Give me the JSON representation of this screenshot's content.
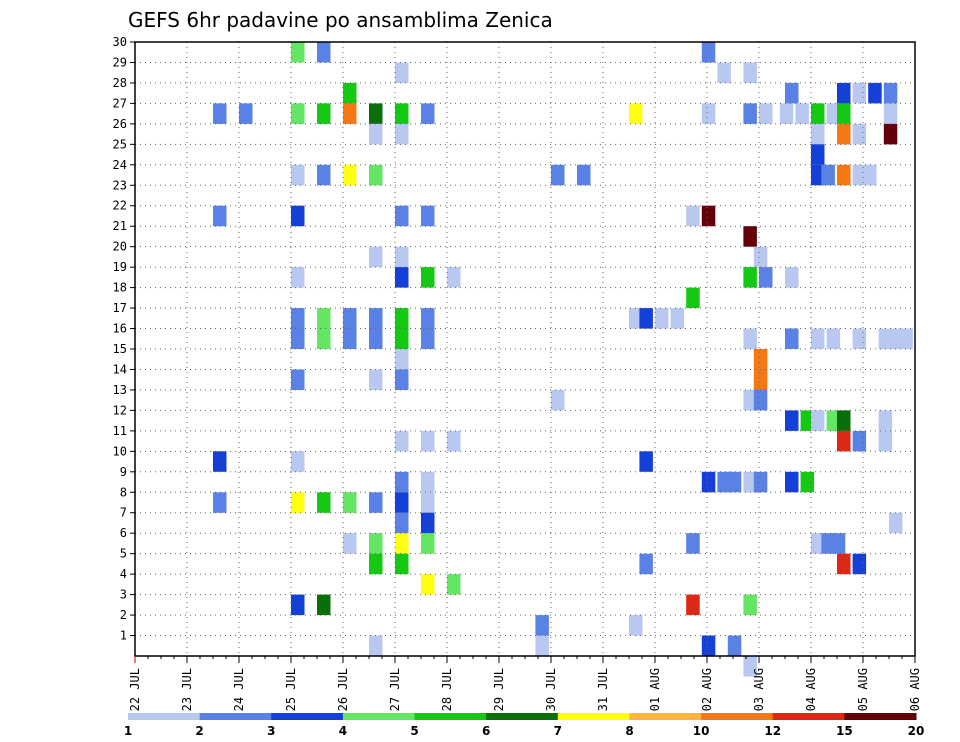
{
  "chart_data": {
    "type": "heatmap",
    "title": "GEFS 6hr padavine po ansamblima Zenica",
    "x_tick_labels": [
      "22 JUL",
      "23 JUL",
      "24 JUL",
      "25 JUL",
      "26 JUL",
      "27 JUL",
      "28 JUL",
      "29 JUL",
      "30 JUL",
      "31 JUL",
      "01 AUG",
      "02 AUG",
      "03 AUG",
      "04 AUG",
      "05 AUG",
      "06 AUG"
    ],
    "y_tick_labels": [
      "1",
      "2",
      "3",
      "4",
      "5",
      "6",
      "7",
      "8",
      "9",
      "10",
      "11",
      "12",
      "13",
      "14",
      "15",
      "16",
      "17",
      "18",
      "19",
      "20",
      "21",
      "22",
      "23",
      "24",
      "25",
      "26",
      "27",
      "28",
      "29",
      "30"
    ],
    "ylim": [
      0,
      30
    ],
    "x_steps_per_day": 4,
    "grid": true,
    "colorbar": {
      "labels": [
        "1",
        "2",
        "3",
        "4",
        "5",
        "6",
        "7",
        "8",
        "10",
        "12",
        "15",
        "20"
      ],
      "colors": [
        "#b8c8f0",
        "#5a82e6",
        "#1440d8",
        "#64e664",
        "#14c814",
        "#0a6e0a",
        "#ffff14",
        "#ffb43c",
        "#f57814",
        "#dc2814",
        "#64000a"
      ]
    },
    "cells": [
      {
        "m": 30,
        "x": [
          [
            4,
            1
          ],
          [
            4.5,
            4
          ],
          [
            7,
            4
          ]
        ]
      },
      {
        "m": 29,
        "x": [
          [
            3,
            4
          ],
          [
            3.5,
            2
          ]
        ]
      },
      {
        "m": 28,
        "x": [
          [
            5,
            1
          ]
        ]
      },
      {
        "m": 27,
        "x": [
          [
            4,
            5
          ]
        ]
      },
      {
        "m": 26,
        "x": [
          [
            1.5,
            2
          ],
          [
            2,
            2
          ],
          [
            3,
            4
          ],
          [
            3.5,
            5
          ],
          [
            4,
            9
          ],
          [
            4.5,
            6
          ],
          [
            5,
            5
          ],
          [
            5.5,
            2
          ]
        ]
      },
      {
        "m": 25,
        "x": [
          [
            4.5,
            1
          ],
          [
            5,
            1
          ]
        ]
      },
      {
        "m": 23,
        "x": [
          [
            3,
            1
          ],
          [
            3.5,
            2
          ],
          [
            4,
            7
          ],
          [
            4.5,
            4
          ],
          [
            8,
            2
          ],
          [
            8.5,
            2
          ]
        ]
      },
      {
        "m": 21,
        "x": [
          [
            1.5,
            2
          ],
          [
            3,
            3
          ],
          [
            5,
            2
          ],
          [
            5.5,
            2
          ]
        ]
      },
      {
        "m": 19,
        "x": [
          [
            4.5,
            1
          ],
          [
            5,
            1
          ]
        ]
      },
      {
        "m": 18,
        "x": [
          [
            3,
            1
          ],
          [
            5,
            3
          ],
          [
            5.5,
            5
          ],
          [
            6,
            1
          ]
        ]
      },
      {
        "m": 16,
        "x": [
          [
            3,
            2
          ],
          [
            3.5,
            4
          ],
          [
            4,
            2
          ],
          [
            4.5,
            2
          ],
          [
            5,
            5
          ],
          [
            5.5,
            2
          ]
        ]
      },
      {
        "m": 15,
        "x": [
          [
            3,
            2
          ],
          [
            3.5,
            4
          ],
          [
            4,
            2
          ],
          [
            4.5,
            2
          ],
          [
            5,
            5
          ],
          [
            5.5,
            2
          ]
        ]
      },
      {
        "m": 14,
        "x": [
          [
            5,
            1
          ]
        ]
      },
      {
        "m": 13,
        "x": [
          [
            3,
            2
          ],
          [
            4.5,
            1
          ],
          [
            5,
            2
          ]
        ]
      },
      {
        "m": 12,
        "x": [
          [
            8,
            1
          ]
        ]
      },
      {
        "m": 10,
        "x": [
          [
            5,
            1
          ],
          [
            5.5,
            1
          ],
          [
            6,
            1
          ]
        ]
      },
      {
        "m": 9,
        "x": [
          [
            1.5,
            3
          ],
          [
            3,
            1
          ]
        ]
      },
      {
        "m": 8,
        "x": [
          [
            5,
            2
          ],
          [
            5.5,
            1
          ]
        ]
      },
      {
        "m": 7,
        "x": [
          [
            1.5,
            2
          ],
          [
            3,
            7
          ],
          [
            3.5,
            5
          ],
          [
            4,
            4
          ],
          [
            4.5,
            2
          ],
          [
            5,
            3
          ],
          [
            5.5,
            1
          ]
        ]
      },
      {
        "m": 6,
        "x": [
          [
            5,
            2
          ],
          [
            5.5,
            3
          ]
        ]
      },
      {
        "m": 5,
        "x": [
          [
            4,
            1
          ],
          [
            4.5,
            4
          ],
          [
            5,
            7
          ],
          [
            5.5,
            4
          ]
        ]
      },
      {
        "m": 4,
        "x": [
          [
            4.5,
            5
          ],
          [
            5,
            5
          ]
        ]
      },
      {
        "m": 3,
        "x": [
          [
            5.5,
            7
          ],
          [
            6,
            4
          ]
        ]
      },
      {
        "m": 2,
        "x": [
          [
            3,
            3
          ],
          [
            3.5,
            6
          ]
        ]
      },
      {
        "m": 0,
        "x": [
          [
            4.5,
            1
          ]
        ]
      },
      {
        "m": 30,
        "x": [
          [
            9.7,
            1
          ],
          [
            10,
            1
          ]
        ]
      },
      {
        "m": 29,
        "x": [
          [
            10.9,
            2
          ]
        ]
      },
      {
        "m": 28,
        "x": [
          [
            11.2,
            1
          ],
          [
            11.7,
            1
          ]
        ]
      },
      {
        "m": 27,
        "x": [
          [
            12.5,
            2
          ],
          [
            13.5,
            3
          ],
          [
            13.8,
            1
          ],
          [
            14.1,
            3
          ],
          [
            14.4,
            2
          ]
        ]
      },
      {
        "m": 26,
        "x": [
          [
            9.5,
            7
          ],
          [
            10.9,
            1
          ],
          [
            11.7,
            2
          ],
          [
            12,
            1
          ],
          [
            12.4,
            1
          ],
          [
            12.7,
            1
          ],
          [
            13,
            5
          ],
          [
            13.3,
            1
          ],
          [
            13.5,
            5
          ],
          [
            14.4,
            1
          ]
        ]
      },
      {
        "m": 25,
        "x": [
          [
            13,
            1
          ],
          [
            13.5,
            9
          ],
          [
            13.8,
            1
          ],
          [
            14.4,
            11
          ]
        ]
      },
      {
        "m": 24,
        "x": [
          [
            13,
            3
          ]
        ]
      },
      {
        "m": 23,
        "x": [
          [
            13,
            3
          ],
          [
            13.2,
            2
          ],
          [
            13.5,
            9
          ],
          [
            13.8,
            1
          ],
          [
            14,
            1
          ]
        ]
      },
      {
        "m": 21,
        "x": [
          [
            10.6,
            1
          ],
          [
            10.9,
            11
          ]
        ]
      },
      {
        "m": 20,
        "x": [
          [
            11.7,
            11
          ]
        ]
      },
      {
        "m": 19,
        "x": [
          [
            11.9,
            1
          ]
        ]
      },
      {
        "m": 18,
        "x": [
          [
            11.7,
            5
          ],
          [
            12,
            2
          ],
          [
            12.5,
            1
          ]
        ]
      },
      {
        "m": 17,
        "x": [
          [
            10.6,
            5
          ]
        ]
      },
      {
        "m": 16,
        "x": [
          [
            9.5,
            1
          ],
          [
            9.7,
            3
          ],
          [
            10,
            1
          ],
          [
            10.3,
            1
          ]
        ]
      },
      {
        "m": 15,
        "x": [
          [
            11.7,
            1
          ],
          [
            12.5,
            2
          ],
          [
            13,
            1
          ],
          [
            13.3,
            1
          ],
          [
            13.8,
            1
          ],
          [
            14.3,
            1
          ],
          [
            14.5,
            1
          ],
          [
            14.7,
            1
          ]
        ]
      },
      {
        "m": 14,
        "x": [
          [
            11.9,
            9
          ]
        ]
      },
      {
        "m": 13,
        "x": [
          [
            11.9,
            9
          ]
        ]
      },
      {
        "m": 12,
        "x": [
          [
            11.7,
            1
          ],
          [
            11.9,
            2
          ]
        ]
      },
      {
        "m": 11,
        "x": [
          [
            12.5,
            3
          ],
          [
            12.8,
            5
          ],
          [
            13,
            1
          ],
          [
            13.3,
            4
          ],
          [
            13.5,
            6
          ],
          [
            14.3,
            1
          ]
        ]
      },
      {
        "m": 10,
        "x": [
          [
            13.5,
            10
          ],
          [
            13.8,
            2
          ],
          [
            14.3,
            1
          ]
        ]
      },
      {
        "m": 9,
        "x": [
          [
            9.7,
            3
          ]
        ]
      },
      {
        "m": 8,
        "x": [
          [
            10.9,
            3
          ],
          [
            11.2,
            2
          ],
          [
            11.4,
            2
          ],
          [
            11.7,
            1
          ],
          [
            11.9,
            2
          ],
          [
            12.5,
            3
          ],
          [
            12.8,
            5
          ]
        ]
      },
      {
        "m": 6,
        "x": [
          [
            14.5,
            1
          ]
        ]
      },
      {
        "m": 5,
        "x": [
          [
            10.6,
            2
          ],
          [
            13,
            1
          ],
          [
            13.2,
            2
          ],
          [
            13.4,
            2
          ]
        ]
      },
      {
        "m": 4,
        "x": [
          [
            9.7,
            2
          ],
          [
            13.5,
            10
          ],
          [
            13.8,
            3
          ]
        ]
      },
      {
        "m": 2,
        "x": [
          [
            10.6,
            10
          ],
          [
            11.7,
            4
          ]
        ]
      },
      {
        "m": 1,
        "x": [
          [
            7.7,
            2
          ],
          [
            9.5,
            1
          ]
        ]
      },
      {
        "m": 0,
        "x": [
          [
            7.7,
            1
          ],
          [
            10.9,
            3
          ],
          [
            11.4,
            2
          ]
        ]
      },
      {
        "m": -1,
        "x": [
          [
            11.7,
            1
          ]
        ]
      }
    ]
  }
}
